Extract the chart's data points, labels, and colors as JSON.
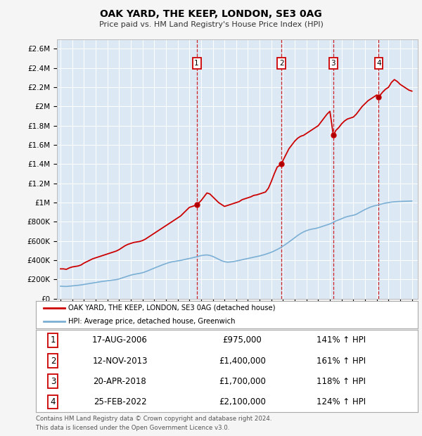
{
  "title": "OAK YARD, THE KEEP, LONDON, SE3 0AG",
  "subtitle": "Price paid vs. HM Land Registry's House Price Index (HPI)",
  "red_line_color": "#cc0000",
  "blue_line_color": "#7bafd4",
  "background_color": "#dce9f5",
  "fig_bg": "#f5f5f5",
  "ylim": [
    0,
    2700000
  ],
  "yticks": [
    0,
    200000,
    400000,
    600000,
    800000,
    1000000,
    1200000,
    1400000,
    1600000,
    1800000,
    2000000,
    2200000,
    2400000,
    2600000
  ],
  "ytick_labels": [
    "£0",
    "£200K",
    "£400K",
    "£600K",
    "£800K",
    "£1M",
    "£1.2M",
    "£1.4M",
    "£1.6M",
    "£1.8M",
    "£2M",
    "£2.2M",
    "£2.4M",
    "£2.6M"
  ],
  "sale_years": [
    2006.625,
    2013.875,
    2018.292,
    2022.167
  ],
  "sale_prices": [
    975000,
    1400000,
    1700000,
    2100000
  ],
  "sale_labels": [
    "1",
    "2",
    "3",
    "4"
  ],
  "sale_pct": [
    "141% ↑ HPI",
    "161% ↑ HPI",
    "118% ↑ HPI",
    "124% ↑ HPI"
  ],
  "sale_dates_str": [
    "17-AUG-2006",
    "12-NOV-2013",
    "20-APR-2018",
    "25-FEB-2022"
  ],
  "sale_prices_str": [
    "£975,000",
    "£1,400,000",
    "£1,700,000",
    "£2,100,000"
  ],
  "legend_red": "OAK YARD, THE KEEP, LONDON, SE3 0AG (detached house)",
  "legend_blue": "HPI: Average price, detached house, Greenwich",
  "footer1": "Contains HM Land Registry data © Crown copyright and database right 2024.",
  "footer2": "This data is licensed under the Open Government Licence v3.0.",
  "red_dates": [
    1995.0,
    1995.25,
    1995.5,
    1995.75,
    1996.0,
    1996.25,
    1996.5,
    1996.75,
    1997.0,
    1997.25,
    1997.5,
    1997.75,
    1998.0,
    1998.25,
    1998.5,
    1998.75,
    1999.0,
    1999.25,
    1999.5,
    1999.75,
    2000.0,
    2000.25,
    2000.5,
    2000.75,
    2001.0,
    2001.25,
    2001.5,
    2001.75,
    2002.0,
    2002.25,
    2002.5,
    2002.75,
    2003.0,
    2003.25,
    2003.5,
    2003.75,
    2004.0,
    2004.25,
    2004.5,
    2004.75,
    2005.0,
    2005.25,
    2005.5,
    2005.75,
    2006.0,
    2006.25,
    2006.5,
    2006.625,
    2006.75,
    2007.0,
    2007.25,
    2007.5,
    2007.75,
    2008.0,
    2008.25,
    2008.5,
    2008.75,
    2009.0,
    2009.25,
    2009.5,
    2009.75,
    2010.0,
    2010.25,
    2010.5,
    2010.75,
    2011.0,
    2011.25,
    2011.5,
    2011.75,
    2012.0,
    2012.25,
    2012.5,
    2012.75,
    2013.0,
    2013.25,
    2013.5,
    2013.75,
    2013.875,
    2014.0,
    2014.25,
    2014.5,
    2014.75,
    2015.0,
    2015.25,
    2015.5,
    2015.75,
    2016.0,
    2016.25,
    2016.5,
    2016.75,
    2017.0,
    2017.25,
    2017.5,
    2017.75,
    2018.0,
    2018.292,
    2018.5,
    2018.75,
    2019.0,
    2019.25,
    2019.5,
    2019.75,
    2020.0,
    2020.25,
    2020.5,
    2020.75,
    2021.0,
    2021.25,
    2021.5,
    2021.75,
    2022.0,
    2022.167,
    2022.5,
    2022.75,
    2023.0,
    2023.25,
    2023.5,
    2023.75,
    2024.0,
    2024.25,
    2024.5,
    2024.75,
    2025.0
  ],
  "red_values": [
    310000,
    310000,
    305000,
    320000,
    330000,
    335000,
    340000,
    350000,
    370000,
    385000,
    400000,
    415000,
    425000,
    435000,
    445000,
    455000,
    465000,
    475000,
    485000,
    495000,
    510000,
    530000,
    550000,
    565000,
    575000,
    585000,
    590000,
    595000,
    605000,
    620000,
    640000,
    660000,
    680000,
    700000,
    720000,
    740000,
    760000,
    780000,
    800000,
    820000,
    840000,
    860000,
    890000,
    920000,
    950000,
    960000,
    970000,
    975000,
    990000,
    1020000,
    1060000,
    1100000,
    1090000,
    1060000,
    1030000,
    1000000,
    980000,
    960000,
    970000,
    980000,
    990000,
    1000000,
    1010000,
    1030000,
    1040000,
    1050000,
    1060000,
    1075000,
    1080000,
    1090000,
    1100000,
    1110000,
    1150000,
    1220000,
    1300000,
    1370000,
    1390000,
    1400000,
    1440000,
    1500000,
    1560000,
    1600000,
    1640000,
    1670000,
    1690000,
    1700000,
    1720000,
    1740000,
    1760000,
    1780000,
    1800000,
    1840000,
    1880000,
    1920000,
    1950000,
    1700000,
    1750000,
    1780000,
    1820000,
    1850000,
    1870000,
    1880000,
    1890000,
    1920000,
    1960000,
    2000000,
    2030000,
    2060000,
    2080000,
    2100000,
    2120000,
    2100000,
    2150000,
    2180000,
    2200000,
    2250000,
    2280000,
    2260000,
    2230000,
    2210000,
    2190000,
    2170000,
    2160000
  ],
  "blue_dates": [
    1995.0,
    1995.25,
    1995.5,
    1995.75,
    1996.0,
    1996.25,
    1996.5,
    1996.75,
    1997.0,
    1997.25,
    1997.5,
    1997.75,
    1998.0,
    1998.25,
    1998.5,
    1998.75,
    1999.0,
    1999.25,
    1999.5,
    1999.75,
    2000.0,
    2000.25,
    2000.5,
    2000.75,
    2001.0,
    2001.25,
    2001.5,
    2001.75,
    2002.0,
    2002.25,
    2002.5,
    2002.75,
    2003.0,
    2003.25,
    2003.5,
    2003.75,
    2004.0,
    2004.25,
    2004.5,
    2004.75,
    2005.0,
    2005.25,
    2005.5,
    2005.75,
    2006.0,
    2006.25,
    2006.5,
    2006.75,
    2007.0,
    2007.25,
    2007.5,
    2007.75,
    2008.0,
    2008.25,
    2008.5,
    2008.75,
    2009.0,
    2009.25,
    2009.5,
    2009.75,
    2010.0,
    2010.25,
    2010.5,
    2010.75,
    2011.0,
    2011.25,
    2011.5,
    2011.75,
    2012.0,
    2012.25,
    2012.5,
    2012.75,
    2013.0,
    2013.25,
    2013.5,
    2013.75,
    2014.0,
    2014.25,
    2014.5,
    2014.75,
    2015.0,
    2015.25,
    2015.5,
    2015.75,
    2016.0,
    2016.25,
    2016.5,
    2016.75,
    2017.0,
    2017.25,
    2017.5,
    2017.75,
    2018.0,
    2018.25,
    2018.5,
    2018.75,
    2019.0,
    2019.25,
    2019.5,
    2019.75,
    2020.0,
    2020.25,
    2020.5,
    2020.75,
    2021.0,
    2021.25,
    2021.5,
    2021.75,
    2022.0,
    2022.25,
    2022.5,
    2022.75,
    2023.0,
    2023.25,
    2023.5,
    2023.75,
    2024.0,
    2024.25,
    2024.5,
    2024.75,
    2025.0
  ],
  "blue_values": [
    130000,
    128000,
    127000,
    130000,
    133000,
    136000,
    139000,
    143000,
    148000,
    153000,
    158000,
    163000,
    168000,
    173000,
    178000,
    182000,
    186000,
    190000,
    194000,
    198000,
    205000,
    215000,
    225000,
    235000,
    245000,
    252000,
    258000,
    263000,
    270000,
    280000,
    292000,
    305000,
    318000,
    330000,
    342000,
    354000,
    365000,
    375000,
    383000,
    388000,
    393000,
    398000,
    405000,
    412000,
    418000,
    425000,
    432000,
    440000,
    448000,
    453000,
    455000,
    450000,
    440000,
    425000,
    410000,
    395000,
    385000,
    380000,
    382000,
    386000,
    392000,
    398000,
    405000,
    412000,
    418000,
    425000,
    432000,
    438000,
    445000,
    453000,
    462000,
    472000,
    483000,
    497000,
    512000,
    528000,
    548000,
    568000,
    590000,
    612000,
    635000,
    658000,
    678000,
    695000,
    708000,
    718000,
    725000,
    730000,
    738000,
    748000,
    758000,
    768000,
    778000,
    792000,
    808000,
    820000,
    832000,
    845000,
    855000,
    862000,
    868000,
    878000,
    895000,
    912000,
    928000,
    942000,
    955000,
    965000,
    972000,
    980000,
    988000,
    995000,
    1000000,
    1005000,
    1008000,
    1010000,
    1012000,
    1013000,
    1014000,
    1015000,
    1016000
  ]
}
